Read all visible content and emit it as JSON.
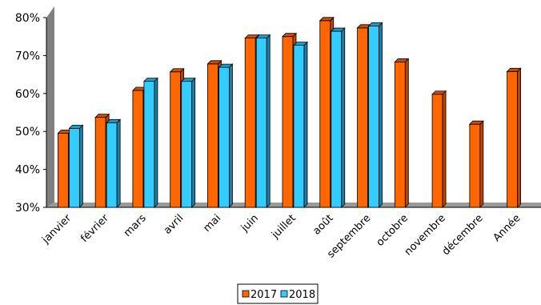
{
  "chart_data": {
    "type": "bar",
    "categories": [
      "janvier",
      "février",
      "mars",
      "avril",
      "mai",
      "juin",
      "juillet",
      "août",
      "septembre",
      "octobre",
      "novembre",
      "décembre",
      "Année"
    ],
    "series": [
      {
        "name": "2017",
        "color": "#ff6600",
        "side": "#b84500",
        "top": "#cc4f00",
        "values": [
          49.5,
          53.7,
          60.8,
          65.7,
          67.8,
          74.6,
          75.0,
          79.2,
          77.3,
          68.3,
          59.8,
          51.9,
          65.8
        ]
      },
      {
        "name": "2018",
        "color": "#33ccff",
        "side": "#1f7fa3",
        "top": "#1a9dcc",
        "values": [
          50.8,
          52.3,
          63.2,
          63.2,
          66.9,
          74.6,
          72.7,
          76.4,
          77.8,
          null,
          null,
          null,
          null
        ]
      }
    ],
    "ylim": [
      30,
      80
    ],
    "yticks": [
      30,
      40,
      50,
      60,
      70,
      80
    ],
    "ytick_labels": [
      "30%",
      "40%",
      "50%",
      "60%",
      "70%",
      "80%"
    ],
    "grid": false,
    "legend_position": "bottom-center",
    "wall_color": "#808080",
    "floor_color": "#9a9a9a"
  }
}
